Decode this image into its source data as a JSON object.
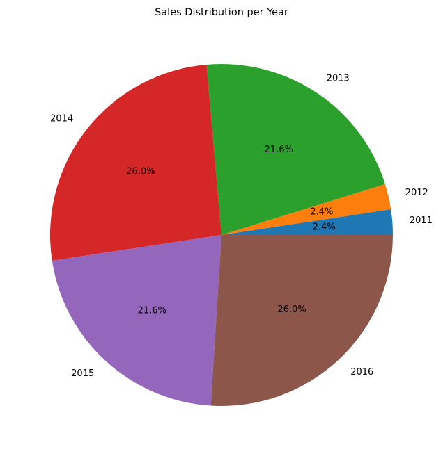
{
  "chart_data": {
    "type": "pie",
    "title": "Sales Distribution per Year",
    "labels": [
      "2011",
      "2012",
      "2013",
      "2014",
      "2015",
      "2016"
    ],
    "values": [
      2.4,
      2.4,
      21.6,
      26.0,
      21.6,
      26.0
    ],
    "percent_labels": [
      "2.4%",
      "2.4%",
      "21.6%",
      "26.0%",
      "21.6%",
      "26.0%"
    ],
    "colors": [
      "#1f77b4",
      "#ff7f0e",
      "#2ca02c",
      "#d62728",
      "#9467bd",
      "#8c564b"
    ],
    "start_angle_deg": 0,
    "direction": "counterclockwise",
    "legend": "none"
  }
}
